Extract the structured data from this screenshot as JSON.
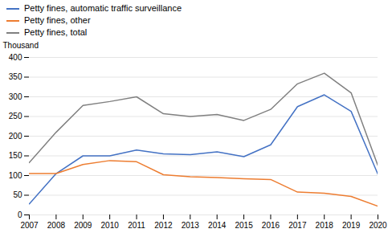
{
  "chart_data": {
    "type": "line",
    "ylabel": "Thousand",
    "x": [
      2007,
      2008,
      2009,
      2010,
      2011,
      2012,
      2013,
      2014,
      2015,
      2016,
      2017,
      2018,
      2019,
      2020
    ],
    "series": [
      {
        "name": "Petty fines, automatic traffic surveillance",
        "color": "#4472C4",
        "values": [
          28,
          105,
          150,
          150,
          165,
          155,
          153,
          160,
          148,
          178,
          275,
          305,
          263,
          103
        ]
      },
      {
        "name": "Petty fines, other",
        "color": "#ED7D31",
        "values": [
          105,
          105,
          128,
          138,
          135,
          102,
          97,
          95,
          92,
          90,
          58,
          55,
          47,
          22
        ]
      },
      {
        "name": "Petty fines, total",
        "color": "#808080",
        "values": [
          133,
          210,
          278,
          288,
          300,
          257,
          250,
          255,
          240,
          268,
          333,
          360,
          310,
          125
        ]
      }
    ],
    "xlim": [
      2007,
      2020
    ],
    "xticks": [
      2007,
      2008,
      2009,
      2010,
      2011,
      2012,
      2013,
      2014,
      2015,
      2016,
      2017,
      2018,
      2019,
      2020
    ],
    "ylim": [
      0,
      400
    ],
    "yticks": [
      0,
      50,
      100,
      150,
      200,
      250,
      300,
      350,
      400
    ],
    "grid": true,
    "legend": "upper left"
  }
}
